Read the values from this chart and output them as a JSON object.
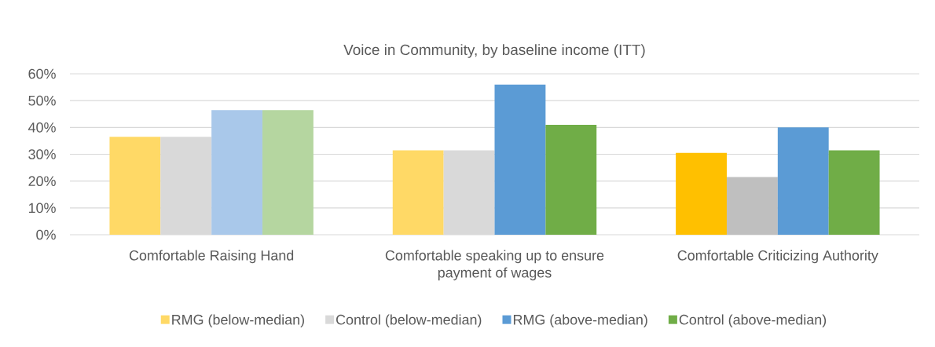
{
  "chart_data": {
    "type": "bar",
    "title": "Voice in Community, by baseline income (ITT)",
    "categories": [
      "Comfortable Raising Hand",
      "Comfortable speaking up to ensure payment of wages",
      "Comfortable Criticizing Authority"
    ],
    "series": [
      {
        "name": "RMG (below-median)",
        "color": "#ffd966",
        "colors": [
          "#ffd966",
          "#ffd966",
          "#ffc000"
        ],
        "values": [
          36.5,
          31.5,
          30.5
        ]
      },
      {
        "name": "Control (below-median)",
        "color": "#d9d9d9",
        "colors": [
          "#d9d9d9",
          "#d9d9d9",
          "#bfbfbf"
        ],
        "values": [
          36.5,
          31.5,
          21.5
        ]
      },
      {
        "name": "RMG (above-median)",
        "color": "#5b9bd5",
        "colors": [
          "#a9c8ea",
          "#5b9bd5",
          "#5b9bd5"
        ],
        "values": [
          46.5,
          56,
          40
        ]
      },
      {
        "name": "Control (above-median)",
        "color": "#70ad47",
        "colors": [
          "#b5d6a0",
          "#70ad47",
          "#70ad47"
        ],
        "values": [
          46.5,
          41,
          31.5
        ]
      }
    ],
    "ylim": [
      0,
      60
    ],
    "yticks": [
      {
        "value": 0,
        "label": "0%"
      },
      {
        "value": 10,
        "label": "10%"
      },
      {
        "value": 20,
        "label": "20%"
      },
      {
        "value": 30,
        "label": "30%"
      },
      {
        "value": 40,
        "label": "40%"
      },
      {
        "value": 50,
        "label": "50%"
      },
      {
        "value": 60,
        "label": "60%"
      }
    ],
    "grid": "y",
    "legend": "bottom"
  }
}
